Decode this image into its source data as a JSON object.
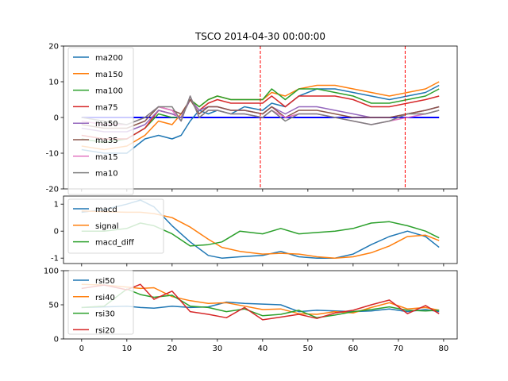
{
  "chart_data": {
    "title": "TSCO 2014-04-30 00:00:00",
    "x_ticks": [
      0,
      10,
      20,
      30,
      40,
      50,
      60,
      70,
      80
    ],
    "xlim": [
      -4,
      83
    ],
    "panels": [
      {
        "id": "ma",
        "type": "line",
        "ylim": [
          -20,
          20
        ],
        "y_ticks": [
          -20,
          -10,
          0,
          10,
          20
        ],
        "legend": "top-left",
        "zero_line": {
          "y": 0,
          "color": "#0000ff"
        },
        "vlines": [
          {
            "x": 39.5,
            "color": "#ff0000"
          },
          {
            "x": 71.5,
            "color": "#ff0000"
          }
        ],
        "x": [
          0,
          5,
          10,
          14,
          17,
          20,
          22,
          24,
          26,
          28,
          30,
          33,
          36,
          40,
          42,
          45,
          48,
          52,
          56,
          60,
          64,
          68,
          72,
          76,
          79
        ],
        "series": [
          {
            "name": "ma200",
            "color": "#1f77b4",
            "values": [
              -9,
              -10,
              -10,
              -6,
              -5,
              -6,
              -5,
              -1,
              2,
              1,
              2,
              1,
              3,
              2,
              4,
              3,
              6,
              8,
              8,
              7,
              6,
              5,
              6,
              7,
              9
            ]
          },
          {
            "name": "ma150",
            "color": "#ff7f0e",
            "values": [
              -8,
              -9,
              -8,
              -5,
              -1,
              -2,
              1,
              5,
              3,
              5,
              6,
              5,
              5,
              5,
              7,
              6,
              8,
              9,
              9,
              8,
              7,
              6,
              7,
              8,
              10
            ]
          },
          {
            "name": "ma100",
            "color": "#2ca02c",
            "values": [
              -6,
              -7,
              -6,
              -3,
              1,
              0,
              0,
              5,
              3,
              5,
              6,
              5,
              5,
              5,
              8,
              5,
              8,
              8,
              7,
              6,
              4,
              4,
              5,
              6,
              8
            ]
          },
          {
            "name": "ma75",
            "color": "#d62728",
            "values": [
              -5,
              -6,
              -6,
              -3,
              2,
              1,
              0,
              5,
              2,
              4,
              5,
              4,
              4,
              4,
              6,
              3,
              6,
              6,
              6,
              5,
              3,
              3,
              4,
              5,
              6
            ]
          },
          {
            "name": "ma50",
            "color": "#9467bd",
            "values": [
              -3,
              -4,
              -4,
              -2,
              2,
              1,
              0,
              5,
              2,
              3,
              3,
              2,
              2,
              1,
              3,
              1,
              3,
              3,
              2,
              1,
              0,
              0,
              1,
              2,
              3
            ]
          },
          {
            "name": "ma35",
            "color": "#8c564b",
            "values": [
              -2,
              -3,
              -3,
              -1,
              3,
              2,
              1,
              5,
              1,
              3,
              3,
              2,
              2,
              1,
              3,
              0,
              2,
              2,
              1,
              0,
              0,
              0,
              1,
              2,
              3
            ]
          },
          {
            "name": "ma15",
            "color": "#e377c2",
            "values": [
              -1,
              -2,
              -2,
              0,
              3,
              2,
              -1,
              6,
              0,
              2,
              2,
              1,
              1,
              0,
              2,
              0,
              1,
              1,
              0,
              -1,
              -2,
              -1,
              0,
              1,
              2
            ]
          },
          {
            "name": "ma10",
            "color": "#7f7f7f",
            "values": [
              0,
              -1,
              -2,
              0,
              3,
              3,
              -1,
              6,
              0,
              2,
              2,
              1,
              1,
              0,
              2,
              -1,
              1,
              1,
              0,
              -1,
              -2,
              -1,
              1,
              1,
              2
            ]
          }
        ]
      },
      {
        "id": "macd",
        "type": "line",
        "ylim": [
          -1.2,
          1.3
        ],
        "y_ticks": [
          -1,
          0,
          1
        ],
        "legend": "top-left",
        "x": [
          0,
          5,
          10,
          13,
          16,
          20,
          24,
          28,
          31,
          35,
          40,
          44,
          48,
          52,
          56,
          60,
          64,
          68,
          72,
          76,
          79
        ],
        "series": [
          {
            "name": "macd",
            "color": "#1f77b4",
            "values": [
              0.7,
              0.8,
              1.0,
              1.15,
              0.9,
              0.2,
              -0.4,
              -0.9,
              -1.0,
              -0.95,
              -0.9,
              -0.75,
              -0.95,
              -1.0,
              -1.0,
              -0.85,
              -0.5,
              -0.2,
              0.0,
              -0.2,
              -0.6
            ]
          },
          {
            "name": "signal",
            "color": "#ff7f0e",
            "values": [
              0.75,
              0.72,
              0.7,
              0.7,
              0.65,
              0.5,
              0.15,
              -0.3,
              -0.6,
              -0.75,
              -0.85,
              -0.82,
              -0.85,
              -0.95,
              -1.0,
              -0.95,
              -0.8,
              -0.55,
              -0.2,
              -0.15,
              -0.35
            ]
          },
          {
            "name": "macd_diff",
            "color": "#2ca02c",
            "values": [
              0.0,
              0.0,
              0.1,
              0.3,
              0.2,
              -0.1,
              -0.55,
              -0.5,
              -0.4,
              0.0,
              -0.1,
              0.1,
              -0.1,
              -0.05,
              0.0,
              0.1,
              0.3,
              0.35,
              0.2,
              0.0,
              -0.25
            ]
          }
        ]
      },
      {
        "id": "rsi",
        "type": "line",
        "ylim": [
          0,
          100
        ],
        "y_ticks": [
          0,
          50,
          100
        ],
        "legend": "top-left",
        "x": [
          0,
          5,
          10,
          13,
          16,
          20,
          24,
          28,
          32,
          36,
          40,
          44,
          48,
          52,
          56,
          60,
          64,
          68,
          72,
          76,
          79
        ],
        "series": [
          {
            "name": "rsi50",
            "color": "#1f77b4",
            "values": [
              46,
              47,
              48,
              46,
              45,
              48,
              46,
              47,
              54,
              52,
              51,
              50,
              40,
              42,
              41,
              40,
              41,
              44,
              40,
              43,
              40
            ]
          },
          {
            "name": "rsi40",
            "color": "#ff7f0e",
            "values": [
              80,
              79,
              76,
              74,
              75,
              62,
              56,
              52,
              53,
              48,
              43,
              44,
              37,
              36,
              40,
              38,
              46,
              53,
              44,
              46,
              42
            ]
          },
          {
            "name": "rsi30",
            "color": "#2ca02c",
            "values": [
              46,
              48,
              73,
              65,
              61,
              64,
              48,
              46,
              40,
              44,
              34,
              36,
              42,
              31,
              35,
              40,
              43,
              47,
              42,
              41,
              42
            ]
          },
          {
            "name": "rsi20",
            "color": "#d62728",
            "values": [
              74,
              79,
              72,
              80,
              58,
              70,
              40,
              36,
              31,
              46,
              28,
              32,
              36,
              30,
              38,
              42,
              50,
              57,
              37,
              49,
              37
            ]
          }
        ]
      }
    ]
  }
}
